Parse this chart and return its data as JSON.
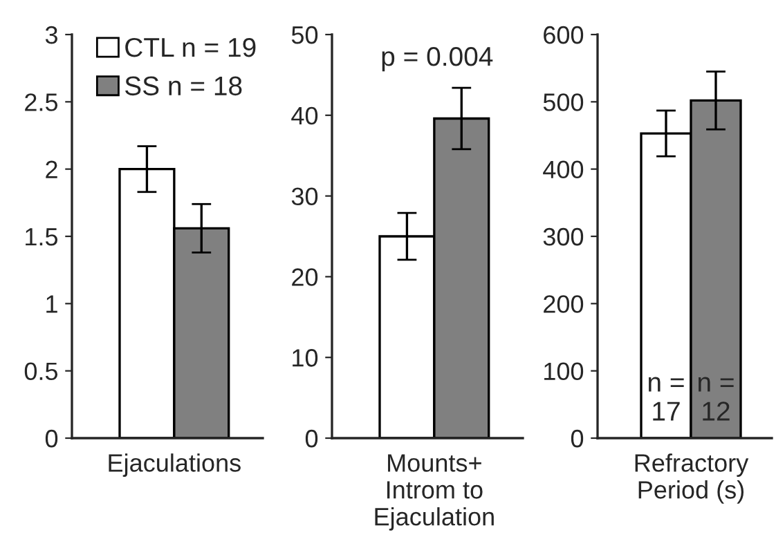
{
  "chart_data": [
    {
      "type": "bar",
      "categories": [
        "Ejaculations"
      ],
      "ylim": [
        0,
        3
      ],
      "yticks": [
        0,
        0.5,
        1,
        1.5,
        2,
        2.5,
        3
      ],
      "grid": false,
      "legend": "top",
      "series": [
        {
          "name": "CTL n = 19",
          "color": "#ffffff",
          "values": [
            2.0
          ],
          "errors": [
            0.17
          ]
        },
        {
          "name": "SS n = 18",
          "color": "#808080",
          "values": [
            1.56
          ],
          "errors": [
            0.18
          ]
        }
      ]
    },
    {
      "type": "bar",
      "categories": [
        "Mounts+\nIntrom to\nEjaculation"
      ],
      "ylim": [
        0,
        50
      ],
      "yticks": [
        0,
        10,
        20,
        30,
        40,
        50
      ],
      "grid": false,
      "annotations": [
        "p = 0.004"
      ],
      "series": [
        {
          "color": "#ffffff",
          "values": [
            25
          ],
          "errors": [
            2.9
          ]
        },
        {
          "color": "#808080",
          "values": [
            39.6
          ],
          "errors": [
            3.8
          ]
        }
      ]
    },
    {
      "type": "bar",
      "categories": [
        "Refractory\nPeriod (s)"
      ],
      "ylim": [
        0,
        600
      ],
      "yticks": [
        0,
        100,
        200,
        300,
        400,
        500,
        600
      ],
      "grid": false,
      "annotations": [
        "n =\n17",
        "n =\n12"
      ],
      "series": [
        {
          "color": "#ffffff",
          "values": [
            453
          ],
          "errors": [
            34
          ]
        },
        {
          "color": "#808080",
          "values": [
            502
          ],
          "errors": [
            43
          ]
        }
      ]
    }
  ]
}
